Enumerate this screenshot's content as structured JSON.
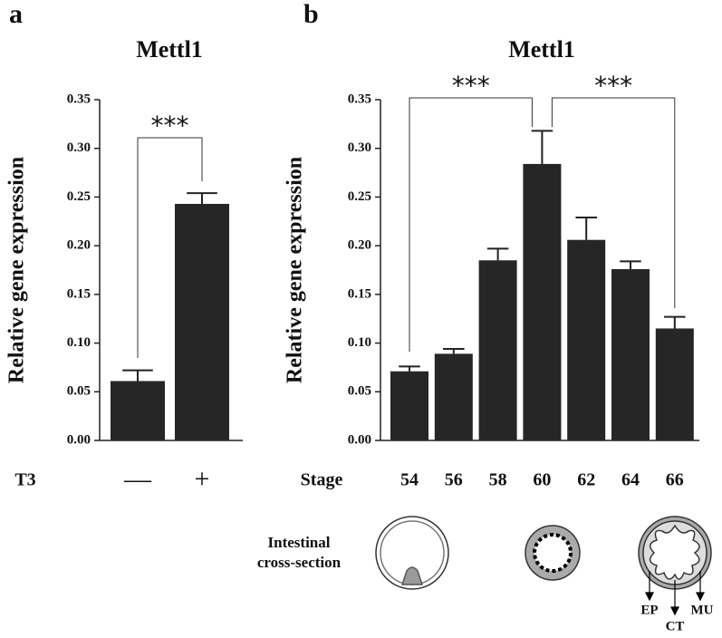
{
  "chart_data": [
    {
      "type": "bar",
      "panel_label": "a",
      "title": "Mettl1",
      "y_label": "Relative gene expression",
      "x_label": "T3",
      "categories": [
        "—",
        "+"
      ],
      "values": [
        0.061,
        0.243
      ],
      "errors": [
        0.011,
        0.011
      ],
      "color": "#262626",
      "ylim": [
        0,
        0.35
      ],
      "yticks": [
        {
          "value": 0,
          "label": "0.00"
        },
        0.05,
        {
          "value": 0.1,
          "label": "0.10"
        },
        0.15,
        {
          "value": 0.2,
          "label": "0.20"
        },
        0.25,
        {
          "value": 0.3,
          "label": "0.30"
        },
        0.35
      ],
      "annotations": [
        "***"
      ]
    },
    {
      "type": "bar",
      "panel_label": "b",
      "title": "Mettl1",
      "y_label": "Relative gene expression",
      "x_label": "Stage",
      "categories": [
        "54",
        "56",
        "58",
        "60",
        "62",
        "64",
        "66"
      ],
      "values": [
        0.071,
        0.089,
        0.185,
        0.284,
        0.206,
        0.176,
        0.115
      ],
      "errors": [
        0.005,
        0.005,
        0.012,
        0.034,
        0.023,
        0.008,
        0.012
      ],
      "color": "#262626",
      "ylim": [
        0,
        0.35
      ],
      "yticks": [
        {
          "value": 0,
          "label": "0.00"
        },
        0.05,
        {
          "value": 0.1,
          "label": "0.10"
        },
        0.15,
        {
          "value": 0.2,
          "label": "0.20"
        },
        0.25,
        {
          "value": 0.3,
          "label": "0.30"
        },
        0.35
      ],
      "annotations": [
        "***",
        "***"
      ]
    }
  ],
  "diagram": {
    "label": [
      "Intestinal",
      "cross-section"
    ],
    "layers": [
      "EP",
      "CT",
      "MU"
    ]
  }
}
